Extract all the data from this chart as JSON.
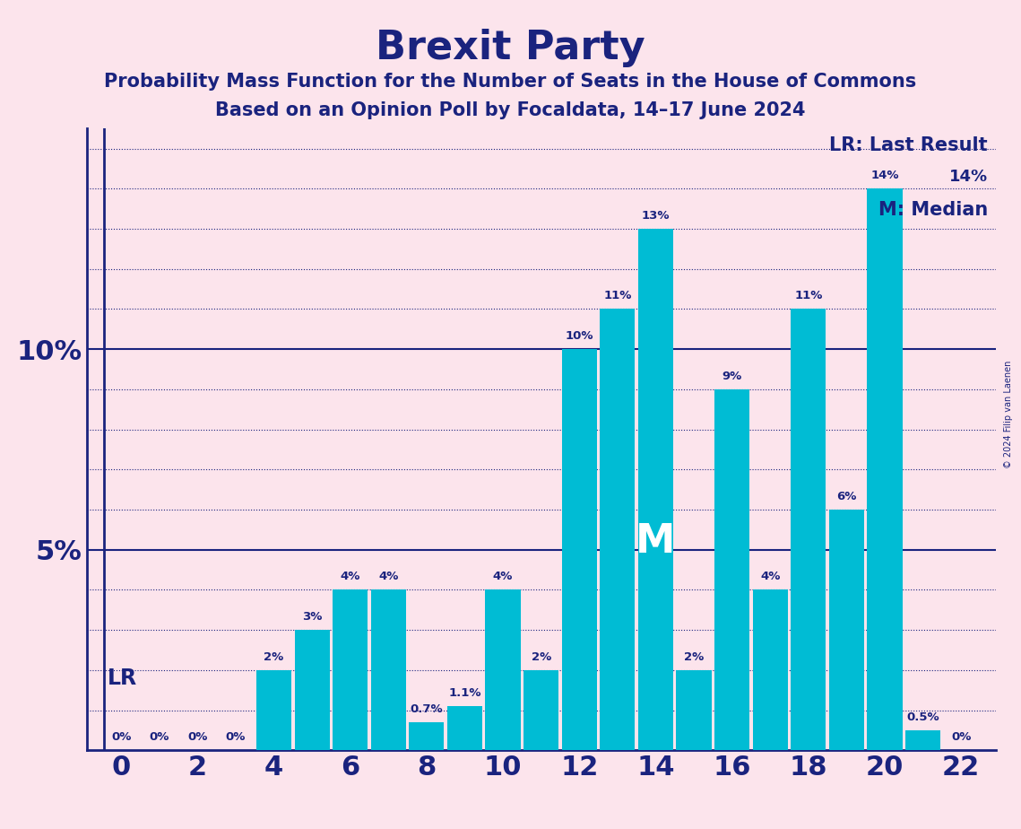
{
  "title": "Brexit Party",
  "subtitle1": "Probability Mass Function for the Number of Seats in the House of Commons",
  "subtitle2": "Based on an Opinion Poll by Focaldata, 14–17 June 2024",
  "background_color": "#fce4ec",
  "bar_color": "#00bcd4",
  "text_color": "#1a237e",
  "categories": [
    0,
    1,
    2,
    3,
    4,
    5,
    6,
    7,
    8,
    9,
    10,
    11,
    12,
    13,
    14,
    15,
    16,
    17,
    18,
    19,
    20,
    21,
    22
  ],
  "values": [
    0,
    0,
    0,
    0,
    2,
    3,
    4,
    4,
    0.7,
    1.1,
    4,
    2,
    10,
    11,
    13,
    2,
    9,
    4,
    11,
    6,
    14,
    0.5,
    0
  ],
  "bar_labels": [
    "0%",
    "0%",
    "0%",
    "0%",
    "2%",
    "3%",
    "4%",
    "4%",
    "0.7%",
    "1.1%",
    "4%",
    "2%",
    "10%",
    "11%",
    "13%",
    "2%",
    "9%",
    "4%",
    "11%",
    "6%",
    "14%",
    "0.5%",
    "0%"
  ],
  "xlabel_ticks": [
    0,
    2,
    4,
    6,
    8,
    10,
    12,
    14,
    16,
    18,
    20,
    22
  ],
  "ylim": [
    0,
    15.5
  ],
  "yticks": [
    5,
    10
  ],
  "ytick_labels": [
    "5%",
    "10%"
  ],
  "lr_seat": 0,
  "median_seat": 14,
  "copyright": "© 2024 Filip van Laenen",
  "legend_lr": "LR: Last Result",
  "legend_lr_sub": "14%",
  "legend_m": "M: Median",
  "grid_color": "#1a237e",
  "solid_grid": [
    5,
    10
  ],
  "grid_max": 15
}
